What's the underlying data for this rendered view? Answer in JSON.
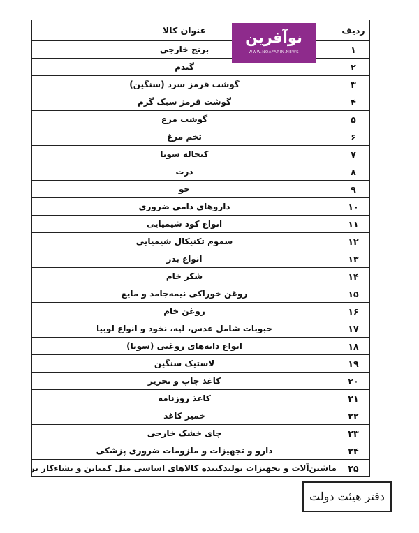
{
  "table": {
    "headers": {
      "row_no": "ردیف",
      "title": "عنوان کالا"
    },
    "rows": [
      {
        "n": "۱",
        "t": "برنج خارجی"
      },
      {
        "n": "۲",
        "t": "گندم"
      },
      {
        "n": "۳",
        "t": "گوشت قرمز سرد (سنگین)"
      },
      {
        "n": "۴",
        "t": "گوشت قرمز سبک گرم"
      },
      {
        "n": "۵",
        "t": "گوشت مرغ"
      },
      {
        "n": "۶",
        "t": "تخم مرغ"
      },
      {
        "n": "۷",
        "t": "کنجاله سویا"
      },
      {
        "n": "۸",
        "t": "ذرت"
      },
      {
        "n": "۹",
        "t": "جو"
      },
      {
        "n": "۱۰",
        "t": "داروهای دامی ضروری"
      },
      {
        "n": "۱۱",
        "t": "انواع کود شیمیایی"
      },
      {
        "n": "۱۲",
        "t": "سموم تکنیکال شیمیایی"
      },
      {
        "n": "۱۳",
        "t": "انواع بذر"
      },
      {
        "n": "۱۴",
        "t": "شکر خام"
      },
      {
        "n": "۱۵",
        "t": "روغن خوراکی نیمه‌جامد و مایع"
      },
      {
        "n": "۱۶",
        "t": "روغن خام"
      },
      {
        "n": "۱۷",
        "t": "حبوبات شامل عدس، لپه، نخود و انواع لوبیا"
      },
      {
        "n": "۱۸",
        "t": "انواع دانه‌های روغنی (سویا)"
      },
      {
        "n": "۱۹",
        "t": "لاستیک سنگین"
      },
      {
        "n": "۲۰",
        "t": "کاغذ چاپ و تحریر"
      },
      {
        "n": "۲۱",
        "t": "کاغذ روزنامه"
      },
      {
        "n": "۲۲",
        "t": "خمیر کاغذ"
      },
      {
        "n": "۲۳",
        "t": "چای خشک خارجی"
      },
      {
        "n": "۲۴",
        "t": "دارو و تجهیزات و ملزومات ضروری پزشکی"
      },
      {
        "n": "۲۵",
        "t": "ماشین‌آلات و تجهیزات تولیدکننده کالاهای اساسی مثل کمباین و نشاءکار برنج"
      }
    ]
  },
  "logo": {
    "mark": "نوآفرین",
    "url": "WWW.NOAFARIN.NEWS",
    "color": "#8e2b8c"
  },
  "stamp": {
    "text": "دفتر هیئت دولت"
  }
}
